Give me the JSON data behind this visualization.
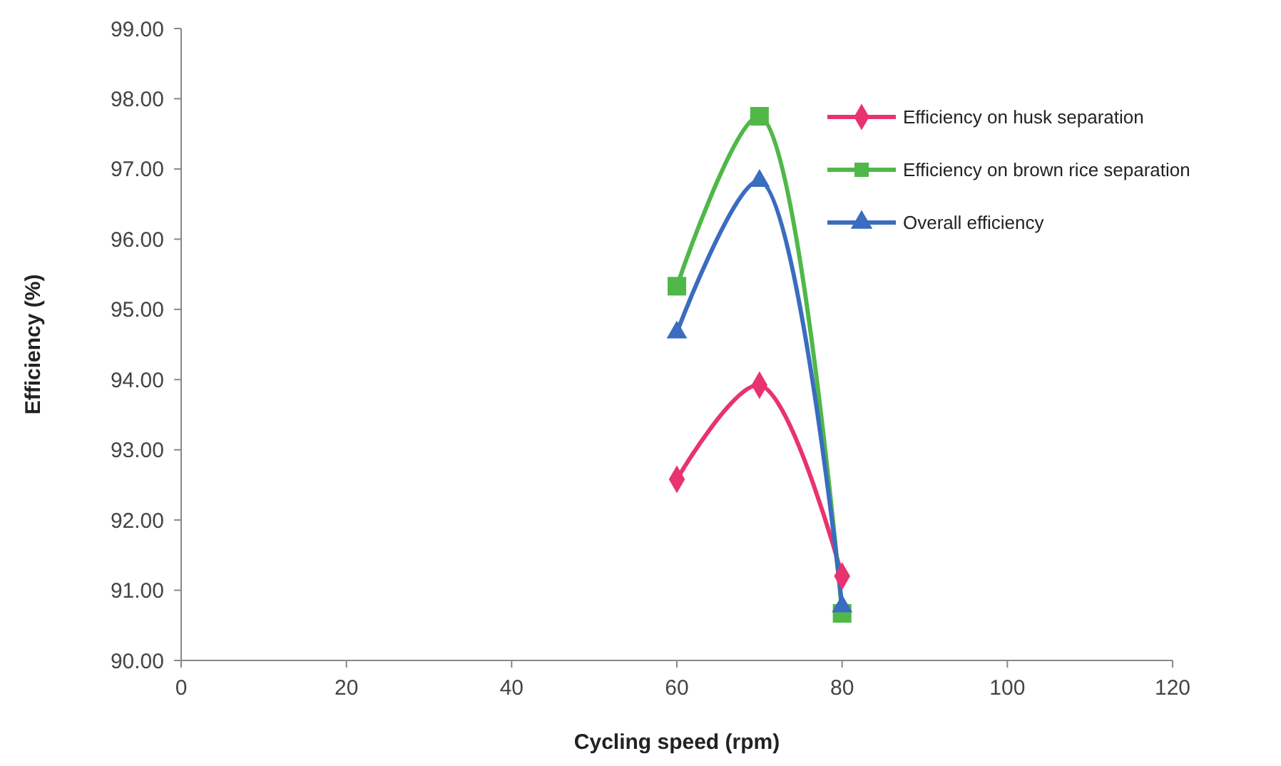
{
  "chart_data": {
    "type": "line",
    "xlabel": "Cycling speed (rpm)",
    "ylabel": "Efficiency (%)",
    "xlim": [
      0,
      120
    ],
    "xticks": [
      0,
      20,
      40,
      60,
      80,
      100,
      120
    ],
    "ylim": [
      90,
      99
    ],
    "yticks": [
      {
        "value": 90,
        "label": "90.00"
      },
      {
        "value": 91,
        "label": "91.00"
      },
      {
        "value": 92,
        "label": "92.00"
      },
      {
        "value": 93,
        "label": "93.00"
      },
      {
        "value": 94,
        "label": "94.00"
      },
      {
        "value": 95,
        "label": "95.00"
      },
      {
        "value": 96,
        "label": "96.00"
      },
      {
        "value": 97,
        "label": "97.00"
      },
      {
        "value": 98,
        "label": "98.00"
      },
      {
        "value": 99,
        "label": "99.00"
      }
    ],
    "x": [
      60,
      70,
      80
    ],
    "legend": "top right",
    "grid": false,
    "series": [
      {
        "name": "Efficiency on husk separation",
        "color": "#e8336e",
        "marker": "diamond",
        "values": [
          92.58,
          93.92,
          91.2
        ]
      },
      {
        "name": "Efficiency on brown rice separation",
        "color": "#4fb848",
        "marker": "square",
        "values": [
          95.33,
          97.75,
          90.67
        ]
      },
      {
        "name": "Overall efficiency",
        "color": "#3a6cbf",
        "marker": "triangle",
        "values": [
          94.67,
          96.83,
          90.77
        ]
      }
    ]
  }
}
